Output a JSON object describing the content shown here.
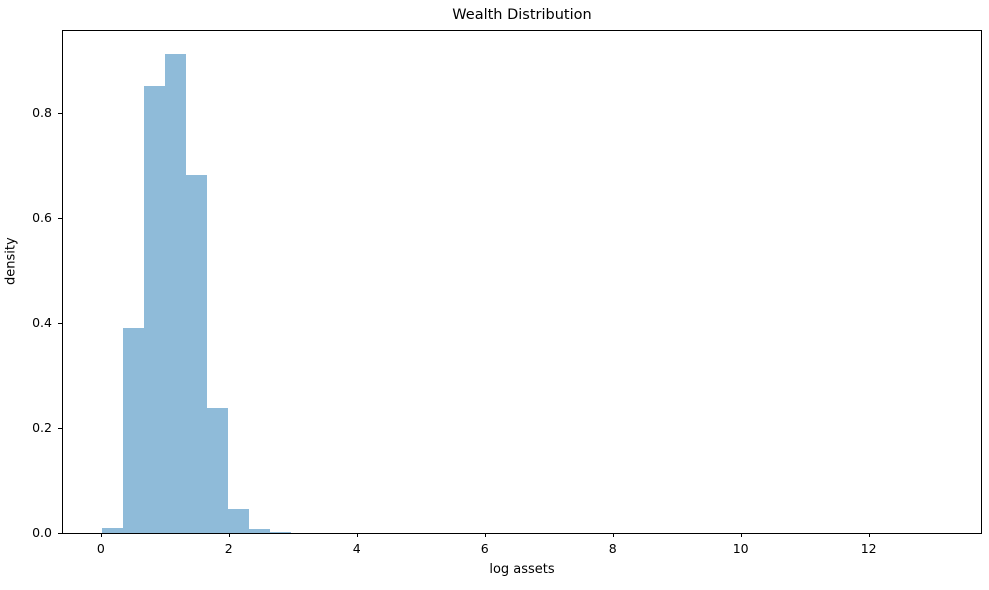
{
  "chart_data": {
    "type": "bar",
    "subtype": "histogram",
    "title": "Wealth Distribution",
    "xlabel": "log assets",
    "ylabel": "density",
    "xlim": [
      -0.59,
      13.755
    ],
    "ylim": [
      0,
      0.956
    ],
    "grid": false,
    "legend": "none",
    "bar_color": "#8fbbd9",
    "xticks": [
      {
        "value": 0,
        "label": "0"
      },
      {
        "value": 2,
        "label": "2"
      },
      {
        "value": 4,
        "label": "4"
      },
      {
        "value": 6,
        "label": "6"
      },
      {
        "value": 8,
        "label": "8"
      },
      {
        "value": 10,
        "label": "10"
      },
      {
        "value": 12,
        "label": "12"
      }
    ],
    "yticks": [
      {
        "value": 0.0,
        "label": "0.0"
      },
      {
        "value": 0.2,
        "label": "0.2"
      },
      {
        "value": 0.4,
        "label": "0.4"
      },
      {
        "value": 0.6,
        "label": "0.6"
      },
      {
        "value": 0.8,
        "label": "0.8"
      }
    ],
    "bins": [
      {
        "x0": 0.02,
        "x1": 0.348,
        "density": 0.01
      },
      {
        "x0": 0.348,
        "x1": 0.676,
        "density": 0.39
      },
      {
        "x0": 0.676,
        "x1": 1.004,
        "density": 0.852
      },
      {
        "x0": 1.004,
        "x1": 1.332,
        "density": 0.912
      },
      {
        "x0": 1.332,
        "x1": 1.66,
        "density": 0.682
      },
      {
        "x0": 1.66,
        "x1": 1.988,
        "density": 0.238
      },
      {
        "x0": 1.988,
        "x1": 2.316,
        "density": 0.045
      },
      {
        "x0": 2.316,
        "x1": 2.644,
        "density": 0.008
      },
      {
        "x0": 2.644,
        "x1": 2.972,
        "density": 0.002
      }
    ]
  }
}
